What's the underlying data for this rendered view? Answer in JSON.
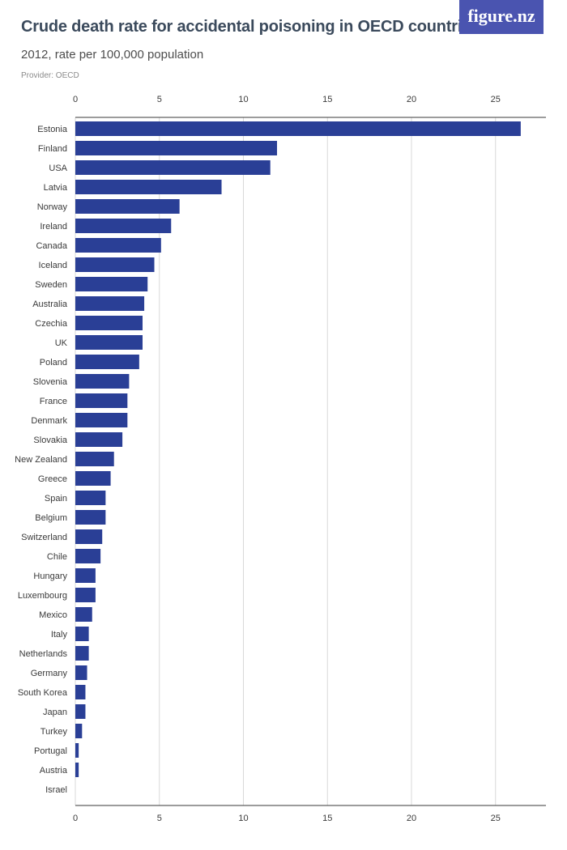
{
  "header": {
    "title": "Crude death rate for accidental poisoning in OECD countries",
    "subtitle": "2012, rate per 100,000 population",
    "provider": "Provider: OECD",
    "logo": "figure.nz"
  },
  "colors": {
    "bar": "#2a3f96",
    "grid": "#d9d9d9",
    "logo_bg": "#4a54b0"
  },
  "chart_data": {
    "type": "bar",
    "orientation": "horizontal",
    "title": "Crude death rate for accidental poisoning in OECD countries",
    "subtitle": "2012, rate per 100,000 population",
    "xlim": [
      0,
      28
    ],
    "ticks": [
      0,
      5,
      10,
      15,
      20,
      25
    ],
    "grid": true,
    "axis_position": "top and bottom",
    "categories": [
      "Estonia",
      "Finland",
      "USA",
      "Latvia",
      "Norway",
      "Ireland",
      "Canada",
      "Iceland",
      "Sweden",
      "Australia",
      "Czechia",
      "UK",
      "Poland",
      "Slovenia",
      "France",
      "Denmark",
      "Slovakia",
      "New Zealand",
      "Greece",
      "Spain",
      "Belgium",
      "Switzerland",
      "Chile",
      "Hungary",
      "Luxembourg",
      "Mexico",
      "Italy",
      "Netherlands",
      "Germany",
      "South Korea",
      "Japan",
      "Turkey",
      "Portugal",
      "Austria",
      "Israel"
    ],
    "values": [
      26.5,
      12.0,
      11.6,
      8.7,
      6.2,
      5.7,
      5.1,
      4.7,
      4.3,
      4.1,
      4.0,
      4.0,
      3.8,
      3.2,
      3.1,
      3.1,
      2.8,
      2.3,
      2.1,
      1.8,
      1.8,
      1.6,
      1.5,
      1.2,
      1.2,
      1.0,
      0.8,
      0.8,
      0.7,
      0.6,
      0.6,
      0.4,
      0.2,
      0.2,
      0.0
    ]
  }
}
